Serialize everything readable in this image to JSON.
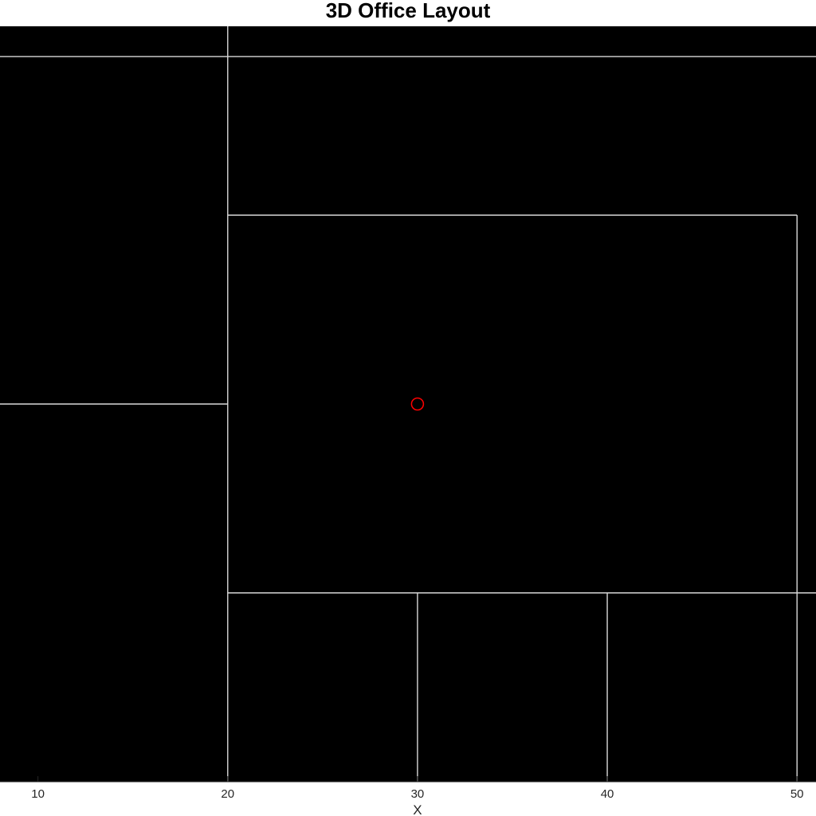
{
  "title": "3D Office Layout",
  "xlabel": "X",
  "x_ticks": [
    "10",
    "20",
    "30",
    "40",
    "50"
  ],
  "colors": {
    "background": "#000000",
    "walls": "#d9d9d9",
    "marker": "#ff0000",
    "text": "#262626"
  },
  "chart_data": {
    "type": "floor-plan",
    "title": "3D Office Layout",
    "xlabel": "X",
    "x_ticks": [
      10,
      20,
      30,
      40,
      50
    ],
    "xlim": [
      8,
      51
    ],
    "ylim": [
      0,
      40
    ],
    "walls": [
      {
        "x": [
          8,
          51
        ],
        "y": [
          38.4,
          38.4
        ]
      },
      {
        "x": [
          20,
          20
        ],
        "y": [
          0,
          40
        ]
      },
      {
        "x": [
          8,
          20
        ],
        "y": [
          20,
          20
        ]
      },
      {
        "x": [
          20,
          50
        ],
        "y": [
          30,
          30
        ]
      },
      {
        "x": [
          50,
          50
        ],
        "y": [
          0,
          30
        ]
      },
      {
        "x": [
          20,
          51
        ],
        "y": [
          10,
          10
        ]
      },
      {
        "x": [
          30,
          30
        ],
        "y": [
          0,
          10
        ]
      },
      {
        "x": [
          40,
          40
        ],
        "y": [
          0,
          10
        ]
      }
    ],
    "markers": [
      {
        "x": 30,
        "y": 20,
        "shape": "circle",
        "color": "#ff0000"
      }
    ]
  }
}
